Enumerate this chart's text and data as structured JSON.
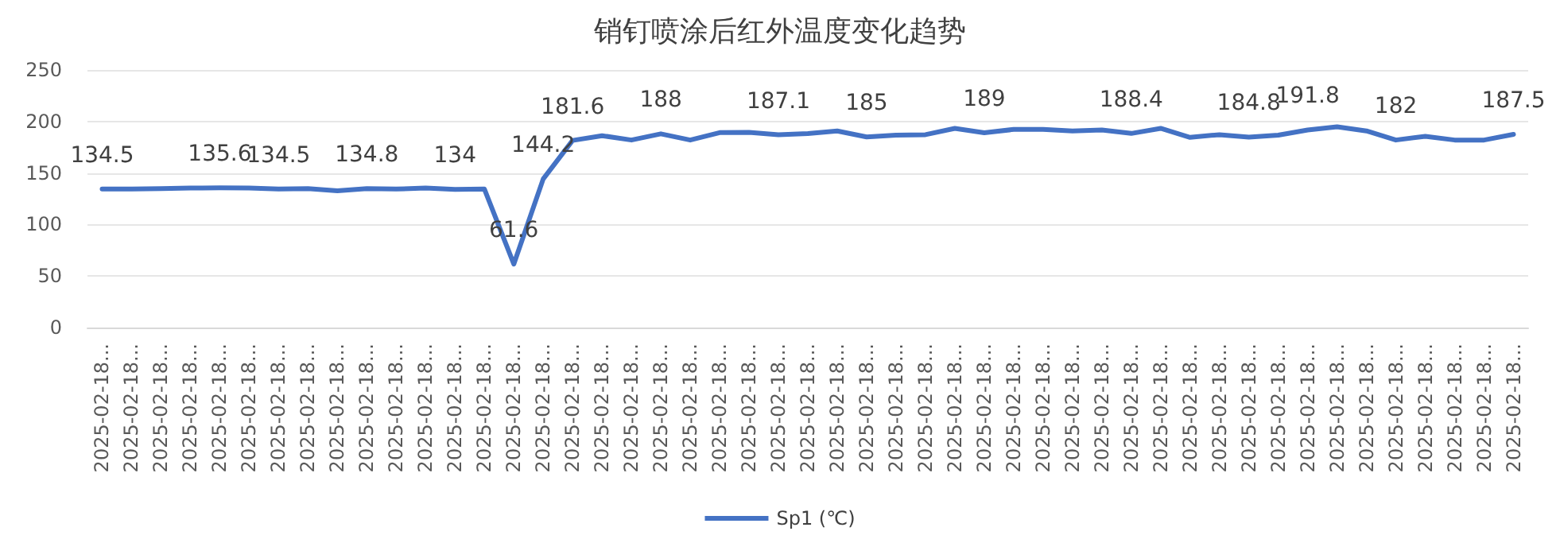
{
  "chart_data": {
    "type": "line",
    "title": "销钉喷涂后红外温度变化趋势",
    "categories": [
      "2025-02-18...",
      "2025-02-18...",
      "2025-02-18...",
      "2025-02-18...",
      "2025-02-18...",
      "2025-02-18...",
      "2025-02-18...",
      "2025-02-18...",
      "2025-02-18...",
      "2025-02-18...",
      "2025-02-18...",
      "2025-02-18...",
      "2025-02-18...",
      "2025-02-18...",
      "2025-02-18...",
      "2025-02-18...",
      "2025-02-18...",
      "2025-02-18...",
      "2025-02-18...",
      "2025-02-18...",
      "2025-02-18...",
      "2025-02-18...",
      "2025-02-18...",
      "2025-02-18...",
      "2025-02-18...",
      "2025-02-18...",
      "2025-02-18...",
      "2025-02-18...",
      "2025-02-18...",
      "2025-02-18...",
      "2025-02-18...",
      "2025-02-18...",
      "2025-02-18...",
      "2025-02-18...",
      "2025-02-18...",
      "2025-02-18...",
      "2025-02-18...",
      "2025-02-18...",
      "2025-02-18...",
      "2025-02-18...",
      "2025-02-18...",
      "2025-02-18...",
      "2025-02-18...",
      "2025-02-18...",
      "2025-02-18...",
      "2025-02-18...",
      "2025-02-18...",
      "2025-02-18...",
      "2025-02-18..."
    ],
    "series": [
      {
        "name": "Sp1 (℃)",
        "color": "#4472c4",
        "values": [
          134.5,
          134.5,
          134.9,
          135.4,
          135.6,
          135.4,
          134.5,
          134.9,
          132.8,
          134.8,
          134.4,
          135.4,
          134,
          134.4,
          61.6,
          144.2,
          181.6,
          186.2,
          182,
          188,
          182,
          189.2,
          189.5,
          187.1,
          188.2,
          190.8,
          185,
          186.7,
          187.2,
          193.3,
          189,
          192.3,
          192.3,
          190.8,
          191.8,
          188.4,
          193.3,
          184.6,
          187.2,
          184.8,
          186.7,
          191.8,
          194.9,
          190.8,
          182,
          185.6,
          182,
          182,
          187.5
        ],
        "value_labels": [
          "134.5",
          null,
          null,
          null,
          "135.6",
          null,
          "134.5",
          null,
          null,
          "134.8",
          null,
          null,
          "134",
          null,
          "61.6",
          "144.2",
          "181.6",
          null,
          null,
          "188",
          null,
          null,
          null,
          "187.1",
          null,
          null,
          "185",
          null,
          null,
          null,
          "189",
          null,
          null,
          null,
          null,
          "188.4",
          null,
          null,
          null,
          "184.8",
          null,
          "191.8",
          null,
          null,
          "182",
          null,
          null,
          null,
          "187.5"
        ]
      }
    ],
    "ylim": [
      0,
      250
    ],
    "yticks": [
      0,
      50,
      100,
      150,
      200,
      250
    ],
    "grid": "y",
    "legend": "bottom",
    "marker": "none",
    "line_style": "solid"
  }
}
